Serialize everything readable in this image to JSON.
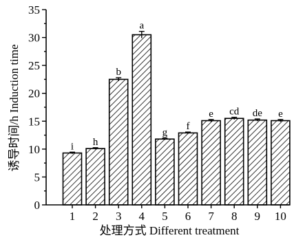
{
  "chart_data": {
    "type": "bar",
    "categories": [
      "1",
      "2",
      "3",
      "4",
      "5",
      "6",
      "7",
      "8",
      "9",
      "10"
    ],
    "values": [
      9.3,
      10.1,
      22.5,
      30.5,
      11.8,
      12.9,
      15.1,
      15.5,
      15.2,
      15.1
    ],
    "errors": [
      0.15,
      0.15,
      0.3,
      0.6,
      0.15,
      0.15,
      0.2,
      0.2,
      0.2,
      0.2
    ],
    "significance": [
      "i",
      "h",
      "b",
      "a",
      "g",
      "f",
      "e",
      "cd",
      "de",
      "e"
    ],
    "xlabel": "处理方式 Different treatment",
    "ylabel": "诱导时间/h Induction time",
    "ylim": [
      0,
      35
    ],
    "yticks": [
      "0",
      "5",
      "10",
      "15",
      "20",
      "25",
      "30",
      "35"
    ],
    "grid": false,
    "bar_fill": "hatched",
    "colors": {
      "stroke": "#000000",
      "hatch": "#000000",
      "background": "#ffffff"
    }
  }
}
